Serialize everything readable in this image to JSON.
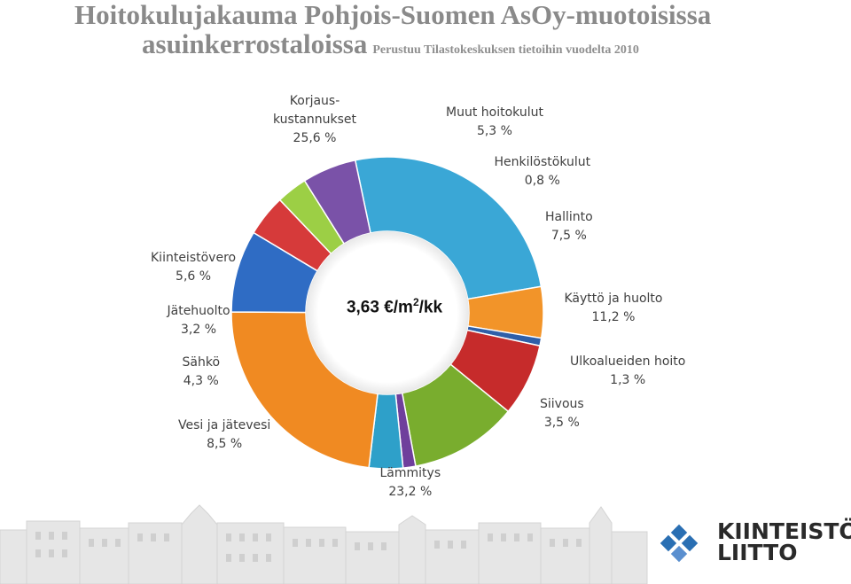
{
  "header": {
    "title_line1": "Hoitokulujakauma Pohjois-Suomen AsOy-muotoisissa",
    "title_line2": "asuinkerrostaloissa",
    "subtitle": "Perustuu Tilastokeskuksen tietoihin vuodelta 2010"
  },
  "center": {
    "value": "3,63 €/m",
    "superscript": "2",
    "unit_suffix": "/kk"
  },
  "chart_data": {
    "type": "pie",
    "donut": true,
    "slices": [
      {
        "label": "Korjaus-\nkustannukset",
        "value_text": "25,6 %",
        "value": 25.6,
        "color": "#3aa7d6"
      },
      {
        "label": "Muut hoitokulut",
        "value_text": "5,3 %",
        "value": 5.3,
        "color": "#f29429"
      },
      {
        "label": "Henkilöstökulut",
        "value_text": "0,8 %",
        "value": 0.8,
        "color": "#2f5fa8"
      },
      {
        "label": "Hallinto",
        "value_text": "7,5 %",
        "value": 7.5,
        "color": "#c62b2b"
      },
      {
        "label": "Käyttö ja huolto",
        "value_text": "11,2 %",
        "value": 11.2,
        "color": "#79ad2e"
      },
      {
        "label": "Ulkoalueiden hoito",
        "value_text": "1,3 %",
        "value": 1.3,
        "color": "#6f3f9c"
      },
      {
        "label": "Siivous",
        "value_text": "3,5 %",
        "value": 3.5,
        "color": "#2ea0c9"
      },
      {
        "label": "Lämmitys",
        "value_text": "23,2 %",
        "value": 23.2,
        "color": "#f08a22"
      },
      {
        "label": "Vesi ja jätevesi",
        "value_text": "8,5 %",
        "value": 8.5,
        "color": "#2f6cc4"
      },
      {
        "label": "Sähkö",
        "value_text": "4,3 %",
        "value": 4.3,
        "color": "#d63a3a"
      },
      {
        "label": "Jätehuolto",
        "value_text": "3,2 %",
        "value": 3.2,
        "color": "#9ccf45"
      },
      {
        "label": "Kiinteistövero",
        "value_text": "5,6 %",
        "value": 5.6,
        "color": "#7a52a8"
      }
    ]
  },
  "logo": {
    "line1": "KIINTEISTÖ",
    "line2": "LIITTO",
    "color": "#2a6fb3"
  }
}
